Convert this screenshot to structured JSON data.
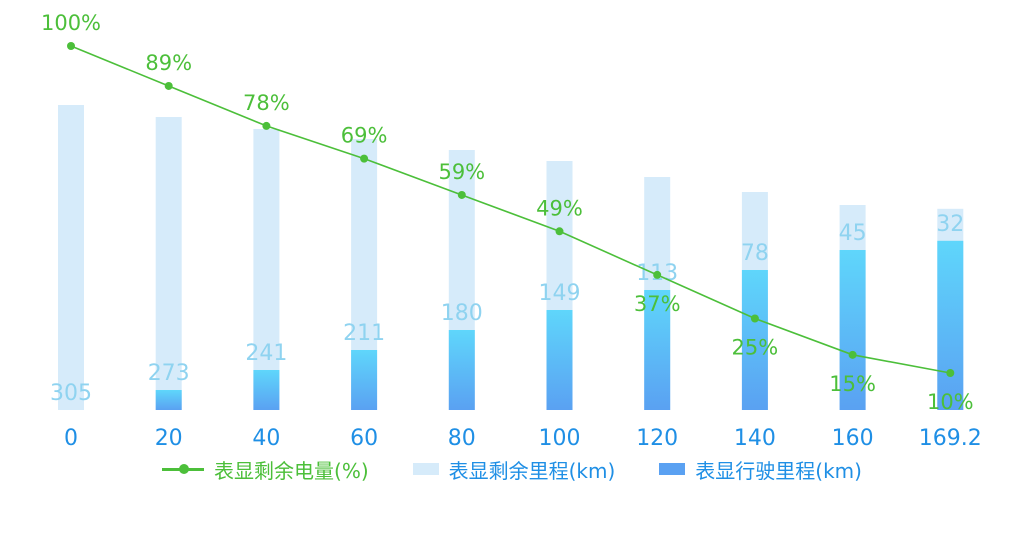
{
  "chart_data": {
    "type": "bar",
    "categories": [
      "0",
      "20",
      "40",
      "60",
      "80",
      "100",
      "120",
      "140",
      "160",
      "169.2"
    ],
    "series": [
      {
        "name": "表显剩余电量(%)",
        "kind": "line",
        "values": [
          100,
          89,
          78,
          69,
          59,
          49,
          37,
          25,
          15,
          10
        ]
      },
      {
        "name": "表显剩余里程(km)",
        "kind": "bar-background",
        "values": [
          305,
          273,
          241,
          211,
          180,
          149,
          113,
          78,
          45,
          32
        ]
      },
      {
        "name": "表显行驶里程(km)",
        "kind": "bar",
        "values": [
          0,
          20,
          40,
          60,
          80,
          100,
          120,
          140,
          160,
          169.2
        ]
      }
    ],
    "line_labels": [
      "100%",
      "89%",
      "78%",
      "69%",
      "59%",
      "49%",
      "37%",
      "25%",
      "15%",
      "10%"
    ],
    "bar_labels": [
      "305",
      "273",
      "241",
      "211",
      "180",
      "149",
      "113",
      "78",
      "45",
      "32"
    ],
    "colors": {
      "line": "#4cbf3a",
      "remaining_bar": "#d6ebfa",
      "remaining_label": "#8fd3f0",
      "driven_bar_top": "#5fd6fb",
      "driven_bar_bottom": "#5aa1f2",
      "axis_label": "#1f8fe5"
    },
    "legend": {
      "position": "bottom",
      "items": [
        {
          "label": "表显剩余电量(%)",
          "swatch": "line"
        },
        {
          "label": "表显剩余里程(km)",
          "swatch": "light-box"
        },
        {
          "label": "表显行驶里程(km)",
          "swatch": "dark-box"
        }
      ]
    },
    "grid": false
  }
}
